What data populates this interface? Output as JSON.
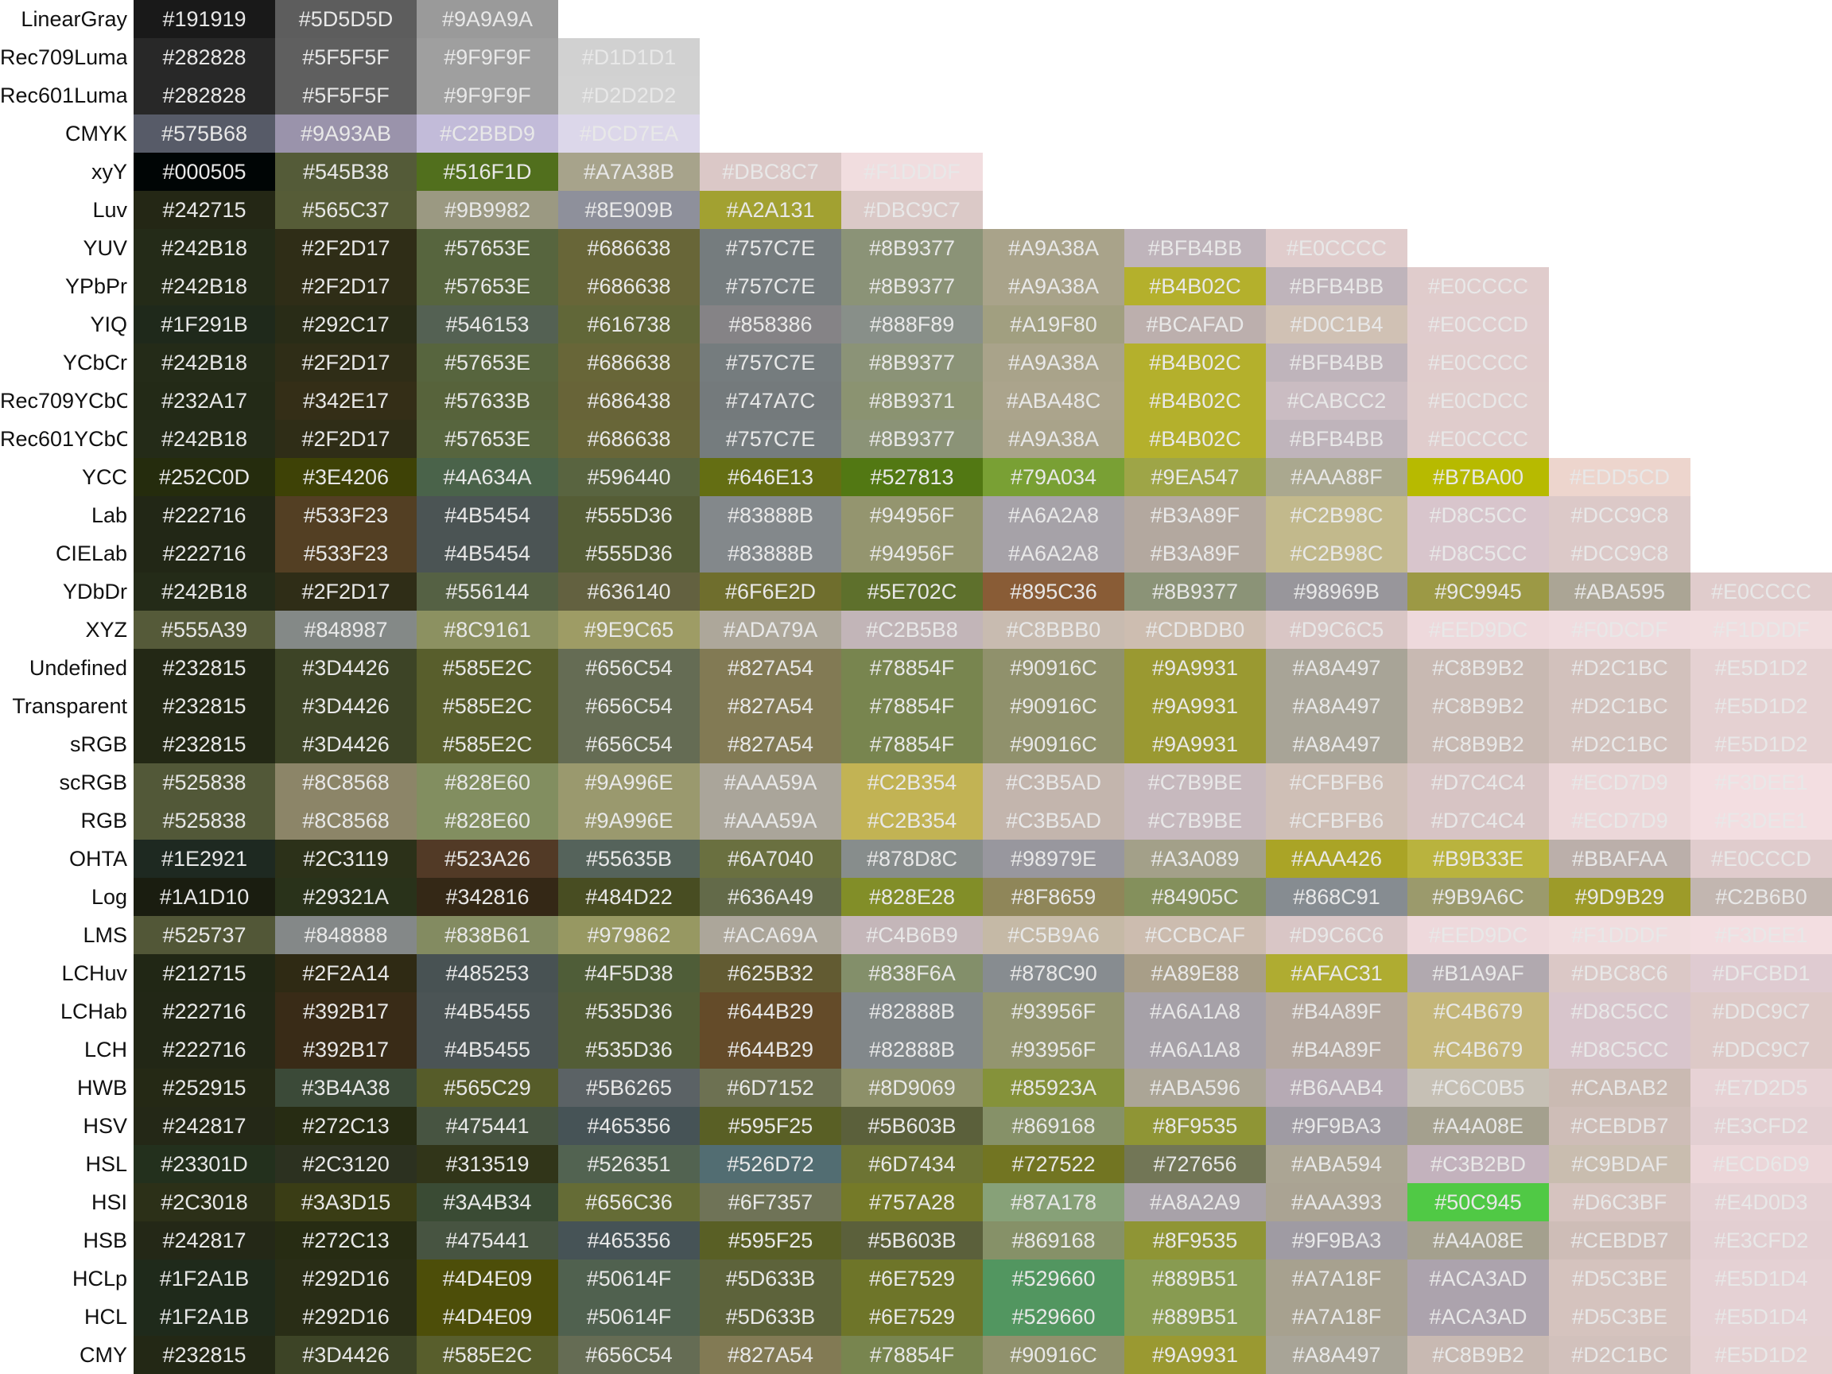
{
  "chart_data": {
    "type": "table",
    "rows": [
      {
        "label": "LinearGray",
        "colors": [
          "#191919",
          "#5D5D5D",
          "#9A9A9A"
        ]
      },
      {
        "label": "Rec709Luma",
        "colors": [
          "#282828",
          "#5F5F5F",
          "#9F9F9F",
          "#D1D1D1"
        ]
      },
      {
        "label": "Rec601Luma",
        "colors": [
          "#282828",
          "#5F5F5F",
          "#9F9F9F",
          "#D2D2D2"
        ]
      },
      {
        "label": "CMYK",
        "colors": [
          "#575B68",
          "#9A93AB",
          "#C2BBD9",
          "#DCD7EA"
        ]
      },
      {
        "label": "xyY",
        "colors": [
          "#000505",
          "#545B38",
          "#516F1D",
          "#A7A38B",
          "#DBC8C7",
          "#F1DDDF"
        ]
      },
      {
        "label": "Luv",
        "colors": [
          "#242715",
          "#565C37",
          "#9B9982",
          "#8E909B",
          "#A2A131",
          "#DBC9C7"
        ]
      },
      {
        "label": "YUV",
        "colors": [
          "#242B18",
          "#2F2D17",
          "#57653E",
          "#686638",
          "#757C7E",
          "#8B9377",
          "#A9A38A",
          "#BFB4BB",
          "#E0CCCC"
        ]
      },
      {
        "label": "YPbPr",
        "colors": [
          "#242B18",
          "#2F2D17",
          "#57653E",
          "#686638",
          "#757C7E",
          "#8B9377",
          "#A9A38A",
          "#B4B02C",
          "#BFB4BB",
          "#E0CCCC"
        ]
      },
      {
        "label": "YIQ",
        "colors": [
          "#1F291B",
          "#292C17",
          "#546153",
          "#616738",
          "#858386",
          "#888F89",
          "#A19F80",
          "#BCAFAD",
          "#D0C1B4",
          "#E0CCCD"
        ]
      },
      {
        "label": "YCbCr",
        "colors": [
          "#242B18",
          "#2F2D17",
          "#57653E",
          "#686638",
          "#757C7E",
          "#8B9377",
          "#A9A38A",
          "#B4B02C",
          "#BFB4BB",
          "#E0CCCC"
        ]
      },
      {
        "label": "Rec709YCbCr",
        "colors": [
          "#232A17",
          "#342E17",
          "#57633B",
          "#686438",
          "#747A7C",
          "#8B9371",
          "#ABA48C",
          "#B4B02C",
          "#CABCC2",
          "#E0CDCC"
        ]
      },
      {
        "label": "Rec601YCbCr",
        "colors": [
          "#242B18",
          "#2F2D17",
          "#57653E",
          "#686638",
          "#757C7E",
          "#8B9377",
          "#A9A38A",
          "#B4B02C",
          "#BFB4BB",
          "#E0CCCC"
        ]
      },
      {
        "label": "YCC",
        "colors": [
          "#252C0D",
          "#3E4206",
          "#4A634A",
          "#596440",
          "#646E13",
          "#527813",
          "#79A034",
          "#9EA547",
          "#AAA88F",
          "#B7BA00",
          "#EDD5CD"
        ]
      },
      {
        "label": "Lab",
        "colors": [
          "#222716",
          "#533F23",
          "#4B5454",
          "#555D36",
          "#83888B",
          "#94956F",
          "#A6A2A8",
          "#B3A89F",
          "#C2B98C",
          "#D8C5CC",
          "#DCC9C8"
        ]
      },
      {
        "label": "CIELab",
        "colors": [
          "#222716",
          "#533F23",
          "#4B5454",
          "#555D36",
          "#83888B",
          "#94956F",
          "#A6A2A8",
          "#B3A89F",
          "#C2B98C",
          "#D8C5CC",
          "#DCC9C8"
        ]
      },
      {
        "label": "YDbDr",
        "colors": [
          "#242B18",
          "#2F2D17",
          "#556144",
          "#636140",
          "#6F6E2D",
          "#5E702C",
          "#895C36",
          "#8B9377",
          "#98969B",
          "#9C9945",
          "#ABA595",
          "#E0CCCC"
        ]
      },
      {
        "label": "XYZ",
        "colors": [
          "#555A39",
          "#848987",
          "#8C9161",
          "#9E9C65",
          "#ADA79A",
          "#C2B5B8",
          "#C8BBB0",
          "#CDBDB0",
          "#D9C6C5",
          "#EED9DC",
          "#F0DCDF",
          "#F1DDDF"
        ]
      },
      {
        "label": "Undefined",
        "colors": [
          "#232815",
          "#3D4426",
          "#585E2C",
          "#656C54",
          "#827A54",
          "#78854F",
          "#90916C",
          "#9A9931",
          "#A8A497",
          "#C8B9B2",
          "#D2C1BC",
          "#E5D1D2"
        ]
      },
      {
        "label": "Transparent",
        "colors": [
          "#232815",
          "#3D4426",
          "#585E2C",
          "#656C54",
          "#827A54",
          "#78854F",
          "#90916C",
          "#9A9931",
          "#A8A497",
          "#C8B9B2",
          "#D2C1BC",
          "#E5D1D2"
        ]
      },
      {
        "label": "sRGB",
        "colors": [
          "#232815",
          "#3D4426",
          "#585E2C",
          "#656C54",
          "#827A54",
          "#78854F",
          "#90916C",
          "#9A9931",
          "#A8A497",
          "#C8B9B2",
          "#D2C1BC",
          "#E5D1D2"
        ]
      },
      {
        "label": "scRGB",
        "colors": [
          "#525838",
          "#8C8568",
          "#828E60",
          "#9A996E",
          "#AAA59A",
          "#C2B354",
          "#C3B5AD",
          "#C7B9BE",
          "#CFBFB6",
          "#D7C4C4",
          "#ECD7D9",
          "#F3DEE1"
        ]
      },
      {
        "label": "RGB",
        "colors": [
          "#525838",
          "#8C8568",
          "#828E60",
          "#9A996E",
          "#AAA59A",
          "#C2B354",
          "#C3B5AD",
          "#C7B9BE",
          "#CFBFB6",
          "#D7C4C4",
          "#ECD7D9",
          "#F3DEE1"
        ]
      },
      {
        "label": "OHTA",
        "colors": [
          "#1E2921",
          "#2C3119",
          "#523A26",
          "#55635B",
          "#6A7040",
          "#878D8C",
          "#98979E",
          "#A3A089",
          "#AAA426",
          "#B9B33E",
          "#BBAFAA",
          "#E0CCCD"
        ]
      },
      {
        "label": "Log",
        "colors": [
          "#1A1D10",
          "#29321A",
          "#342816",
          "#484D22",
          "#636A49",
          "#828E28",
          "#8F8659",
          "#84905C",
          "#868C91",
          "#9B9A6C",
          "#9D9B29",
          "#C2B6B0"
        ]
      },
      {
        "label": "LMS",
        "colors": [
          "#525737",
          "#848888",
          "#838B61",
          "#979862",
          "#ACA69A",
          "#C4B6B9",
          "#C5B9A6",
          "#CCBCAF",
          "#D9C6C6",
          "#EED9DC",
          "#F1DDDF",
          "#F3DEE1"
        ]
      },
      {
        "label": "LCHuv",
        "colors": [
          "#212715",
          "#2F2A14",
          "#485253",
          "#4F5D38",
          "#625B32",
          "#838F6A",
          "#878C90",
          "#A89E88",
          "#AFAC31",
          "#B1A9AF",
          "#DBC8C6",
          "#DFCBD1"
        ]
      },
      {
        "label": "LCHab",
        "colors": [
          "#222716",
          "#392B17",
          "#4B5455",
          "#535D36",
          "#644B29",
          "#82888B",
          "#93956F",
          "#A6A1A8",
          "#B4A89F",
          "#C4B679",
          "#D8C5CC",
          "#DDC9C7"
        ]
      },
      {
        "label": "LCH",
        "colors": [
          "#222716",
          "#392B17",
          "#4B5455",
          "#535D36",
          "#644B29",
          "#82888B",
          "#93956F",
          "#A6A1A8",
          "#B4A89F",
          "#C4B679",
          "#D8C5CC",
          "#DDC9C7"
        ]
      },
      {
        "label": "HWB",
        "colors": [
          "#252915",
          "#3B4A38",
          "#565C29",
          "#5B6265",
          "#6D7152",
          "#8D9069",
          "#85923A",
          "#ABA596",
          "#B6AAB4",
          "#C6C0B5",
          "#CABAB2",
          "#E7D2D5"
        ]
      },
      {
        "label": "HSV",
        "colors": [
          "#242817",
          "#272C13",
          "#475441",
          "#465356",
          "#595F25",
          "#5B603B",
          "#869168",
          "#8F9535",
          "#9F9BA3",
          "#A4A08E",
          "#CEBDB7",
          "#E3CFD2"
        ]
      },
      {
        "label": "HSL",
        "colors": [
          "#23301D",
          "#2C3120",
          "#313519",
          "#526351",
          "#526D72",
          "#6D7434",
          "#727522",
          "#727656",
          "#ABA594",
          "#C3B2BD",
          "#C9BDAF",
          "#ECD6D9"
        ]
      },
      {
        "label": "HSI",
        "colors": [
          "#2C3018",
          "#3A3D15",
          "#3A4B34",
          "#656C36",
          "#6F7357",
          "#757A28",
          "#87A178",
          "#A8A2A9",
          "#AAA393",
          "#50C945",
          "#D6C3BF",
          "#E4D0D3"
        ]
      },
      {
        "label": "HSB",
        "colors": [
          "#242817",
          "#272C13",
          "#475441",
          "#465356",
          "#595F25",
          "#5B603B",
          "#869168",
          "#8F9535",
          "#9F9BA3",
          "#A4A08E",
          "#CEBDB7",
          "#E3CFD2"
        ]
      },
      {
        "label": "HCLp",
        "colors": [
          "#1F2A1B",
          "#292D16",
          "#4D4E09",
          "#50614F",
          "#5D633B",
          "#6E7529",
          "#529660",
          "#889B51",
          "#A7A18F",
          "#ACA3AD",
          "#D5C3BE",
          "#E5D1D4"
        ]
      },
      {
        "label": "HCL",
        "colors": [
          "#1F2A1B",
          "#292D16",
          "#4D4E09",
          "#50614F",
          "#5D633B",
          "#6E7529",
          "#529660",
          "#889B51",
          "#A7A18F",
          "#ACA3AD",
          "#D5C3BE",
          "#E5D1D4"
        ]
      },
      {
        "label": "CMY",
        "colors": [
          "#232815",
          "#3D4426",
          "#585E2C",
          "#656C54",
          "#827A54",
          "#78854F",
          "#90916C",
          "#9A9931",
          "#A8A497",
          "#C8B9B2",
          "#D2C1BC",
          "#E5D1D2"
        ]
      }
    ]
  }
}
